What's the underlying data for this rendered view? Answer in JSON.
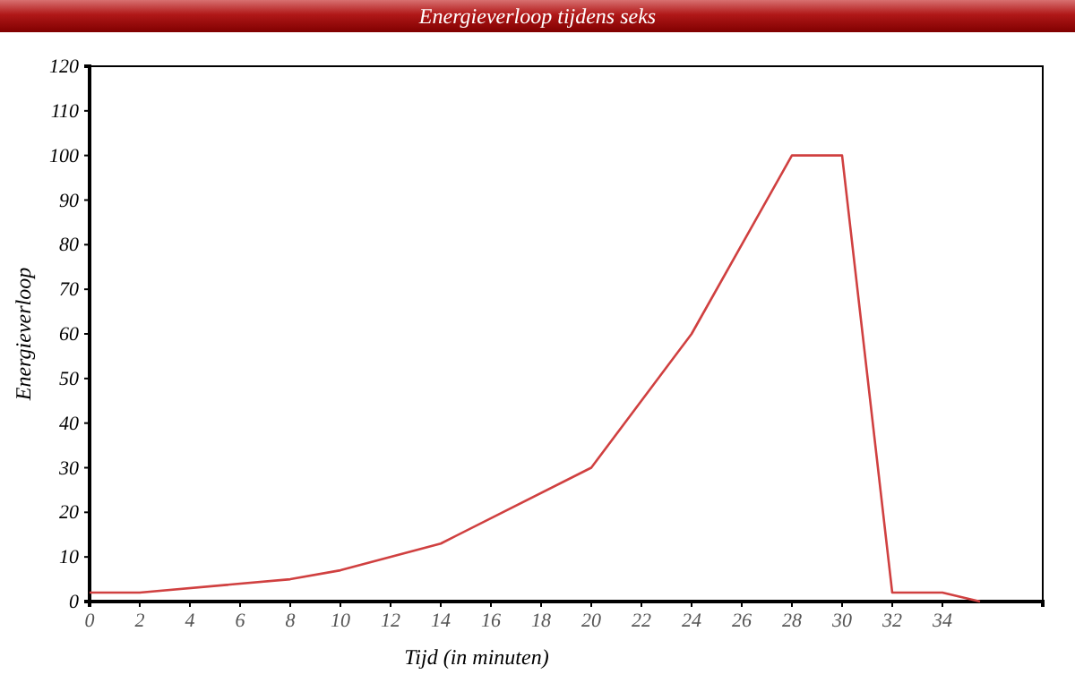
{
  "chart_data": {
    "type": "line",
    "title": "Energieverloop tijdens seks",
    "xlabel": "Tijd (in minuten)",
    "ylabel": "Energieverloop",
    "x": [
      0,
      2,
      8,
      10,
      14,
      20,
      24,
      28,
      30,
      32,
      34,
      35.5
    ],
    "series": [
      {
        "color": "#d04040",
        "values": [
          2,
          2,
          5,
          7,
          13,
          30,
          60,
          100,
          100,
          2,
          2,
          0
        ]
      }
    ],
    "xlim": [
      0,
      38
    ],
    "xticks": [
      0,
      2,
      4,
      6,
      8,
      10,
      12,
      14,
      16,
      18,
      20,
      22,
      24,
      26,
      28,
      30,
      32,
      34
    ],
    "ylim": [
      0,
      120
    ],
    "yticks": [
      0,
      10,
      20,
      30,
      40,
      50,
      60,
      70,
      80,
      90,
      100,
      110,
      120
    ],
    "grid": false,
    "marker": "none",
    "line_style": "solid"
  }
}
